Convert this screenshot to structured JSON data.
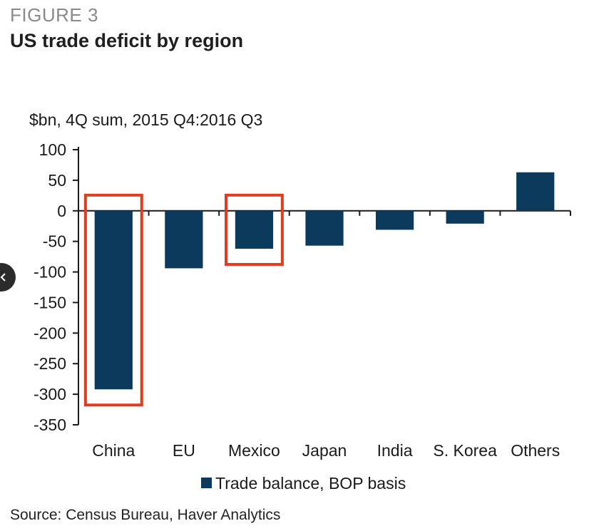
{
  "header": {
    "figure_label": "FIGURE 3",
    "title": "US trade deficit by region"
  },
  "chart_data": {
    "type": "bar",
    "ylabel": "$bn, 4Q sum, 2015 Q4:2016 Q3",
    "categories": [
      "China",
      "EU",
      "Mexico",
      "Japan",
      "India",
      "S. Korea",
      "Others"
    ],
    "series": [
      {
        "name": "Trade balance, BOP basis",
        "values": [
          -292,
          -94,
          -62,
          -57,
          -31,
          -21,
          63
        ],
        "color": "#0b3a5c"
      }
    ],
    "ylim": [
      -350,
      100
    ],
    "yticks": [
      100,
      50,
      0,
      -50,
      -100,
      -150,
      -200,
      -250,
      -300,
      -350
    ],
    "ytick_labels": [
      "100",
      "50",
      "0",
      "-50",
      "-100",
      "-150",
      "-200",
      "-250",
      "-300",
      "-350"
    ],
    "grid": false,
    "legend_position": "bottom",
    "highlighted_categories": [
      "China",
      "Mexico"
    ],
    "highlight_color": "#e03c1f"
  },
  "footer": {
    "source": "Source: Census Bureau, Haver Analytics"
  },
  "nav": {
    "prev_icon": "chevron-left-icon"
  }
}
